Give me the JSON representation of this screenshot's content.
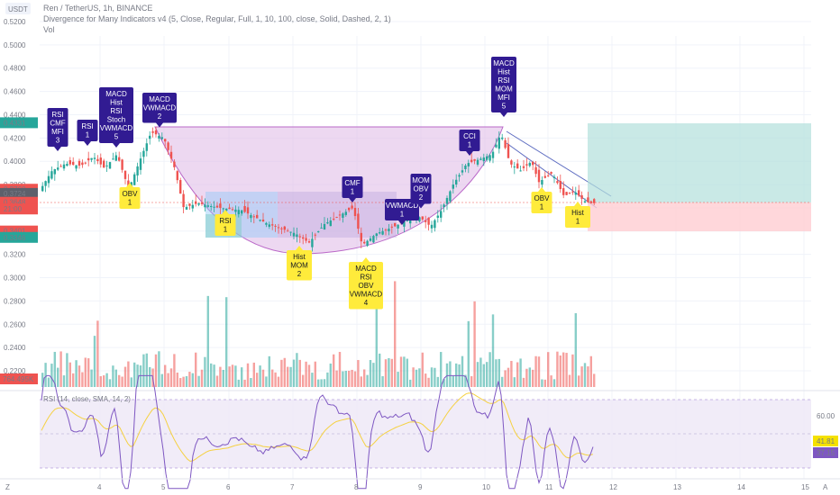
{
  "header": {
    "symbol_line": "Ren / TetherUS, 1h, BINANCE",
    "indicator_line": "Divergence for Many Indicators v4 (5, Close, Regular, Full, 1, 10, 100, close, Solid, Dashed, 2, 1)",
    "volume_line": "Vol",
    "currency_badge": "USDT",
    "rsi_legend": "RSI (14, close, SMA, 14, 2)"
  },
  "price_axis": {
    "ticks": [
      "0.5200",
      "0.5000",
      "0.4800",
      "0.4600",
      "0.4400",
      "0.4200",
      "0.4000",
      "0.3800",
      "0.3600",
      "0.3400",
      "0.3200",
      "0.3000",
      "0.2800",
      "0.2600",
      "0.2400",
      "0.2200"
    ],
    "tick_values": [
      0.52,
      0.5,
      0.48,
      0.46,
      0.44,
      0.42,
      0.4,
      0.38,
      0.36,
      0.34,
      0.32,
      0.3,
      0.28,
      0.26,
      0.24,
      0.22
    ],
    "labels": [
      {
        "text": "0.4331",
        "value": 0.4331,
        "color": "#26a69a"
      },
      {
        "text": "0.3760",
        "value": 0.376,
        "color": "#ef5350"
      },
      {
        "text": "0.3724",
        "value": 0.3724,
        "color": "#5d606b"
      },
      {
        "text": "0.3650",
        "value": 0.365,
        "color": "#5d606b"
      },
      {
        "text": "0.3648",
        "value": 0.3648,
        "color": "#ef5350"
      },
      {
        "text": "21:00",
        "value": 0.359,
        "color": "#ef5350"
      },
      {
        "text": "0.3401",
        "value": 0.3401,
        "color": "#ef5350"
      },
      {
        "text": "0.3346",
        "value": 0.3346,
        "color": "#26a69a"
      }
    ],
    "volume_label": {
      "text": "764.495K",
      "color": "#ef5350"
    }
  },
  "rsi_axis": {
    "level_label": "60.00",
    "value_labels": [
      {
        "text": "41.81",
        "color": "#f5e100",
        "text_color": "#131722"
      },
      {
        "text": "37.15",
        "color": "#7e57c2",
        "text_color": "#ffffff"
      }
    ]
  },
  "time_axis": {
    "ticks": [
      "4",
      "5",
      "6",
      "7",
      "8",
      "9",
      "10",
      "11",
      "12",
      "13",
      "14",
      "15"
    ],
    "left_icon_label": "Z",
    "right_icon_label": "A"
  },
  "signals": [
    {
      "lines": [
        "RSI",
        "CMF",
        "MFI",
        "3"
      ],
      "type": "bearish"
    },
    {
      "lines": [
        "RSI",
        "1"
      ],
      "type": "bearish"
    },
    {
      "lines": [
        "MACD",
        "Hist",
        "RSI",
        "Stoch",
        "VWMACD",
        "5"
      ],
      "type": "bearish"
    },
    {
      "lines": [
        "MACD",
        "VWMACD",
        "2"
      ],
      "type": "bearish"
    },
    {
      "lines": [
        "OBV",
        "1"
      ],
      "type": "bullish"
    },
    {
      "lines": [
        "RSI",
        "1"
      ],
      "type": "bullish"
    },
    {
      "lines": [
        "Hist",
        "MOM",
        "2"
      ],
      "type": "bullish"
    },
    {
      "lines": [
        "CMF",
        "1"
      ],
      "type": "bearish"
    },
    {
      "lines": [
        "MACD",
        "RSI",
        "OBV",
        "VWMACD",
        "4"
      ],
      "type": "bullish"
    },
    {
      "lines": [
        "VWMACD",
        "1"
      ],
      "type": "bearish"
    },
    {
      "lines": [
        "MOM",
        "OBV",
        "2"
      ],
      "type": "bearish"
    },
    {
      "lines": [
        "CCI",
        "1"
      ],
      "type": "bearish"
    },
    {
      "lines": [
        "MACD",
        "Hist",
        "RSI",
        "MOM",
        "MFI",
        "5"
      ],
      "type": "bearish"
    },
    {
      "lines": [
        "OBV",
        "1"
      ],
      "type": "bullish"
    },
    {
      "lines": [
        "Hist",
        "1"
      ],
      "type": "bullish"
    }
  ],
  "colors": {
    "up": "#26a69a",
    "down": "#ef5350",
    "bearish_label": "#311b92",
    "bullish_label": "#ffeb3b",
    "rsi_line": "#7e57c2",
    "rsi_ma": "#f5d142",
    "rsi_band": "#ede7f6",
    "cup_fill": "#e1bee7",
    "target_zone": "#b2dfdb",
    "stop_zone": "#ffcdd2"
  }
}
